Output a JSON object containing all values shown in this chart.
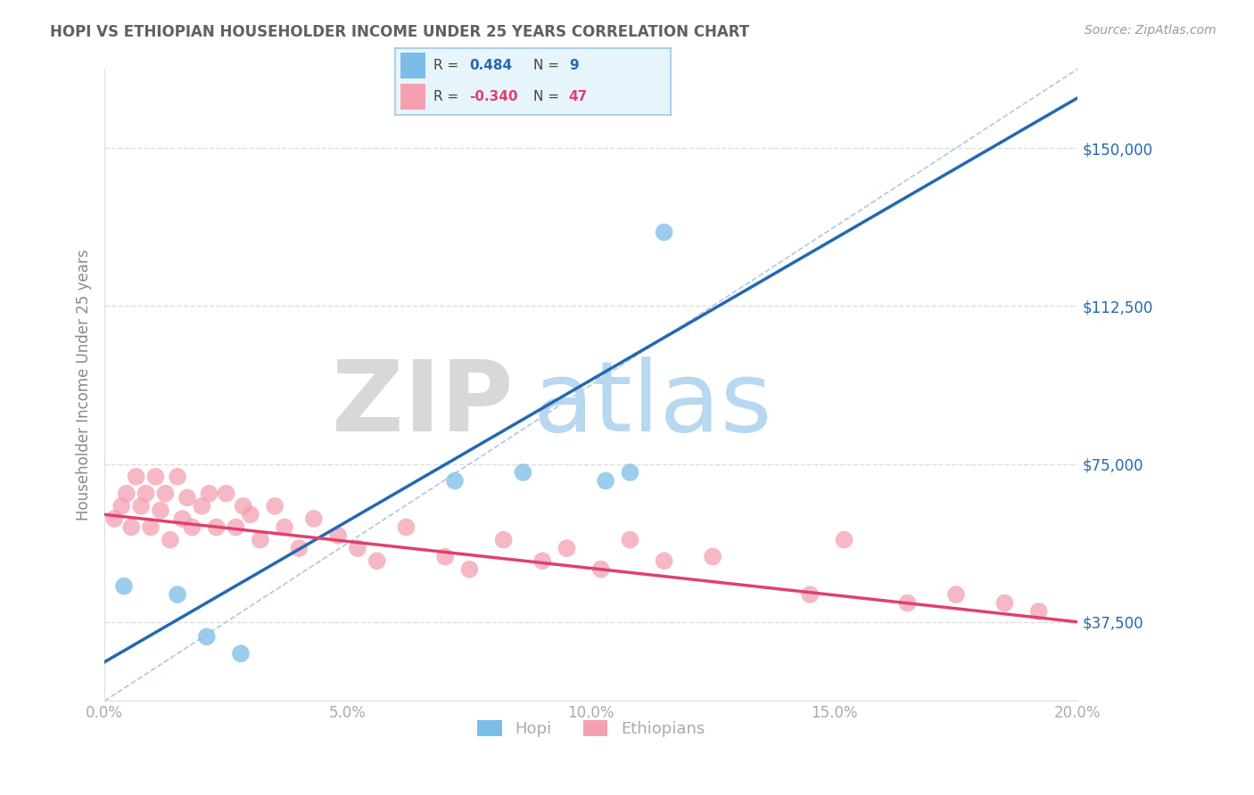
{
  "title": "HOPI VS ETHIOPIAN HOUSEHOLDER INCOME UNDER 25 YEARS CORRELATION CHART",
  "source": "Source: ZipAtlas.com",
  "xlabel": "",
  "ylabel": "Householder Income Under 25 years",
  "xmin": 0.0,
  "xmax": 20.0,
  "ymin": 18750,
  "ymax": 168750,
  "yticks": [
    37500,
    75000,
    112500,
    150000
  ],
  "ytick_labels": [
    "$37,500",
    "$75,000",
    "$112,500",
    "$150,000"
  ],
  "xticks": [
    0.0,
    5.0,
    10.0,
    15.0,
    20.0
  ],
  "xtick_labels": [
    "0.0%",
    "5.0%",
    "10.0%",
    "15.0%",
    "20.0%"
  ],
  "hopi_color": "#7bbde8",
  "ethiopian_color": "#f4a0b0",
  "hopi_R": 0.484,
  "hopi_N": 9,
  "ethiopian_R": -0.34,
  "ethiopian_N": 47,
  "legend_box_color": "#e8f4fb",
  "legend_border_color": "#a0c8e8",
  "title_color": "#606060",
  "source_color": "#999999",
  "axis_label_color": "#888888",
  "tick_color": "#aaaaaa",
  "grid_color": "#dddddd",
  "watermark_zip": "ZIP",
  "watermark_atlas": "atlas",
  "watermark_zip_color": "#d8d8d8",
  "watermark_atlas_color": "#b8d8f0",
  "hopi_x": [
    0.4,
    1.5,
    2.1,
    2.8,
    7.2,
    8.6,
    10.3,
    10.8,
    11.5
  ],
  "hopi_y": [
    46000,
    44000,
    34000,
    30000,
    71000,
    73000,
    71000,
    73000,
    130000
  ],
  "ethiopian_x": [
    0.2,
    0.35,
    0.45,
    0.55,
    0.65,
    0.75,
    0.85,
    0.95,
    1.05,
    1.15,
    1.25,
    1.35,
    1.5,
    1.6,
    1.7,
    1.8,
    2.0,
    2.15,
    2.3,
    2.5,
    2.7,
    2.85,
    3.0,
    3.2,
    3.5,
    3.7,
    4.0,
    4.3,
    4.8,
    5.2,
    5.6,
    6.2,
    7.0,
    7.5,
    8.2,
    9.0,
    9.5,
    10.2,
    10.8,
    11.5,
    12.5,
    14.5,
    15.2,
    16.5,
    17.5,
    18.5,
    19.2
  ],
  "ethiopian_y": [
    62000,
    65000,
    68000,
    60000,
    72000,
    65000,
    68000,
    60000,
    72000,
    64000,
    68000,
    57000,
    72000,
    62000,
    67000,
    60000,
    65000,
    68000,
    60000,
    68000,
    60000,
    65000,
    63000,
    57000,
    65000,
    60000,
    55000,
    62000,
    58000,
    55000,
    52000,
    60000,
    53000,
    50000,
    57000,
    52000,
    55000,
    50000,
    57000,
    52000,
    53000,
    44000,
    57000,
    42000,
    44000,
    42000,
    40000
  ],
  "hopi_line_color": "#2468b0",
  "ethiopian_line_color": "#e04070",
  "diagonal_color": "#b0c8e0",
  "hopi_line_x0": 0.0,
  "hopi_line_y0": 28000,
  "hopi_line_x1": 11.5,
  "hopi_line_y1": 105000,
  "ethiopian_line_x0": 0.0,
  "ethiopian_line_y0": 63000,
  "ethiopian_line_x1": 20.0,
  "ethiopian_line_y1": 37500
}
